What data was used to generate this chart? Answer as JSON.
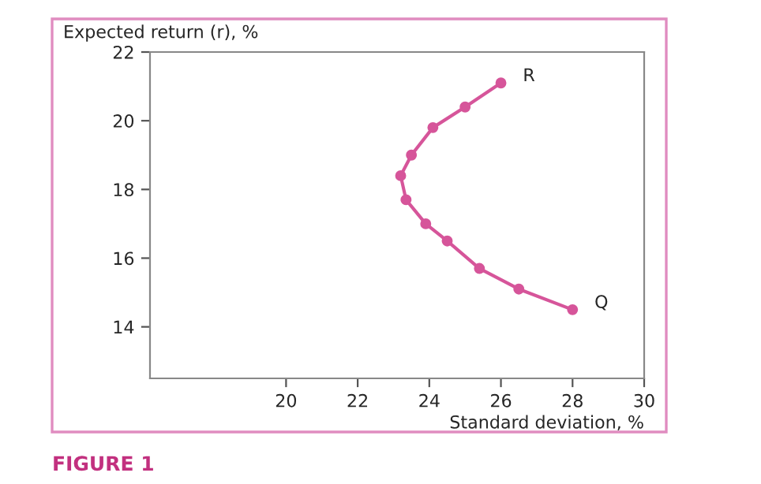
{
  "chart_data": {
    "type": "line",
    "xlabel": "Standard deviation, %",
    "ylabel": "Expected return (r), %",
    "x": [
      26.0,
      25.0,
      24.1,
      23.5,
      23.2,
      23.35,
      23.9,
      24.5,
      25.4,
      26.5,
      28.0
    ],
    "series": [
      {
        "color": "#d6559a",
        "values": [
          21.1,
          20.4,
          19.8,
          19.0,
          18.4,
          17.7,
          17.0,
          16.5,
          15.7,
          15.1,
          14.5
        ]
      }
    ],
    "xlim": [
      16.2,
      30
    ],
    "ylim": [
      12.5,
      22
    ],
    "xticks": [
      20,
      22,
      24,
      26,
      28,
      30
    ],
    "yticks": [
      14,
      16,
      18,
      20,
      22
    ],
    "marker": "circle",
    "line_style": "solid",
    "grid": false,
    "legend": false,
    "annotations": [
      {
        "text": "R",
        "x": 26.0,
        "y": 21.1
      },
      {
        "text": "Q",
        "x": 28.0,
        "y": 14.5
      },
      "FIGURE 1"
    ]
  }
}
